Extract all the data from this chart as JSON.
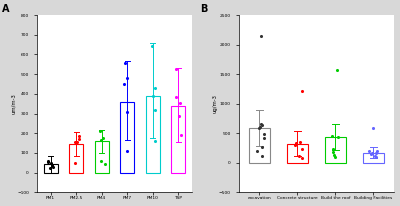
{
  "panel_a": {
    "categories": [
      "PM1",
      "PM2.5",
      "PM4",
      "PM7",
      "PM10",
      "TSP"
    ],
    "bar_colors": [
      "#000000",
      "#ff0000",
      "#00cc00",
      "#0000ff",
      "#00cccc",
      "#ff00ff"
    ],
    "bar_means": [
      42,
      145,
      158,
      358,
      388,
      338
    ],
    "error_low": [
      42,
      60,
      60,
      195,
      210,
      185
    ],
    "error_high": [
      42,
      60,
      60,
      210,
      270,
      195
    ],
    "scatter_points": [
      [
        22,
        30,
        38,
        48,
        55,
        60
      ],
      [
        48,
        155,
        170,
        185,
        155
      ],
      [
        45,
        165,
        175,
        210,
        58
      ],
      [
        112,
        308,
        452,
        478,
        555
      ],
      [
        158,
        318,
        388,
        428,
        645
      ],
      [
        192,
        288,
        352,
        382,
        528
      ]
    ],
    "ylabel": "um/m-3",
    "ylim": [
      -100,
      800
    ],
    "yticks": [
      -100,
      0,
      100,
      200,
      300,
      400,
      500,
      600,
      700,
      800
    ]
  },
  "panel_b": {
    "categories": [
      "excavation",
      "Concrete structure",
      "Build the roof",
      "Building Facilities"
    ],
    "bar_colors": [
      "#333333",
      "#ff0000",
      "#00cc00",
      "#6666ff"
    ],
    "bar_edge_colors": [
      "#888888",
      "#ff0000",
      "#00cc00",
      "#6666ff"
    ],
    "bar_means": [
      590,
      325,
      435,
      170
    ],
    "error_low": [
      310,
      210,
      215,
      95
    ],
    "error_high": [
      310,
      210,
      215,
      95
    ],
    "scatter_points": [
      [
        115,
        195,
        265,
        415,
        488,
        585,
        605,
        638,
        655,
        2148
      ],
      [
        82,
        108,
        238,
        302,
        332,
        358,
        1218
      ],
      [
        98,
        138,
        182,
        228,
        428,
        448,
        1568
      ],
      [
        98,
        112,
        142,
        162,
        172,
        192,
        198,
        582
      ]
    ],
    "ylabel": "ug/m-3",
    "ylim": [
      -500,
      2500
    ],
    "yticks": [
      -500,
      0,
      500,
      1000,
      1500,
      2000,
      2500
    ]
  },
  "bg_color": "#d8d8d8",
  "panel_bg": "#ffffff"
}
